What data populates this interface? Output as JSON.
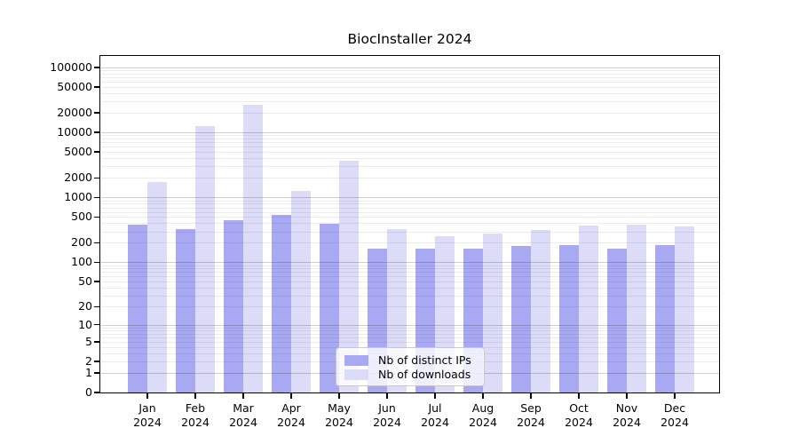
{
  "title": "BiocInstaller 2024",
  "chart_data": {
    "type": "bar",
    "title": "BiocInstaller 2024",
    "categories": [
      "Jan 2024",
      "Feb 2024",
      "Mar 2024",
      "Apr 2024",
      "May 2024",
      "Jun 2024",
      "Jul 2024",
      "Aug 2024",
      "Sep 2024",
      "Oct 2024",
      "Nov 2024",
      "Dec 2024"
    ],
    "x_tick_line2": "2024",
    "series": [
      {
        "name": "Nb of distinct IPs",
        "color": "#a9a9f3",
        "values": [
          375,
          325,
          445,
          535,
          390,
          160,
          160,
          160,
          180,
          183,
          162,
          183
        ]
      },
      {
        "name": "Nb of downloads",
        "color": "#dcdcf8",
        "values": [
          1700,
          12500,
          27000,
          1250,
          3650,
          320,
          255,
          280,
          310,
          365,
          375,
          355
        ]
      }
    ],
    "y_scale": "log1p",
    "ylim": [
      0,
      160000
    ],
    "y_ticks": [
      {
        "label": "100000",
        "value": 100000
      },
      {
        "label": "50000",
        "value": 50000
      },
      {
        "label": "20000",
        "value": 20000
      },
      {
        "label": "10000",
        "value": 10000
      },
      {
        "label": "5000",
        "value": 5000
      },
      {
        "label": "2000",
        "value": 2000
      },
      {
        "label": "1000",
        "value": 1000
      },
      {
        "label": "500",
        "value": 500
      },
      {
        "label": "200",
        "value": 200
      },
      {
        "label": "100",
        "value": 100
      },
      {
        "label": "50",
        "value": 50
      },
      {
        "label": "20",
        "value": 20
      },
      {
        "label": "10",
        "value": 10
      },
      {
        "label": "5",
        "value": 5
      },
      {
        "label": "2",
        "value": 2
      },
      {
        "label": "1",
        "value": 1
      },
      {
        "label": "0",
        "value": 0
      }
    ],
    "grid": "horizontal",
    "grid_major_at": [
      1,
      10,
      100,
      1000,
      10000,
      100000
    ],
    "legend_position": "lower center",
    "axis_color": "#000000"
  }
}
